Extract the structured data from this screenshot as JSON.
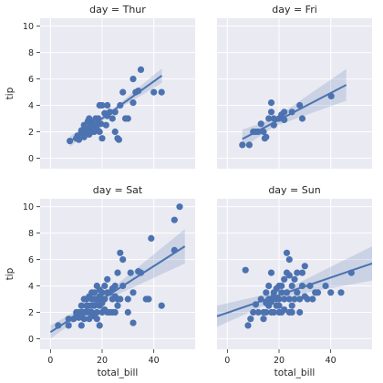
{
  "chart_data": {
    "type": "scatter",
    "layout": "facet-grid 2x2",
    "x_label": "total_bill",
    "y_label": "tip",
    "xlim": [
      -4,
      56
    ],
    "ylim": [
      -0.8,
      10.6
    ],
    "x_ticks": [
      0,
      20,
      40
    ],
    "y_ticks": [
      0,
      2,
      4,
      6,
      8,
      10
    ],
    "grid": true,
    "panels": [
      {
        "title": "day = Thur",
        "line": {
          "x": [
            7.5,
            43.1
          ],
          "y": [
            1.25,
            6.25
          ]
        },
        "band_halfwidth": {
          "x": [
            7.5,
            25,
            43.1
          ],
          "h": [
            0.4,
            0.15,
            0.55
          ]
        },
        "points": [
          [
            7.5,
            1.3
          ],
          [
            10,
            1.5
          ],
          [
            10.5,
            1.7
          ],
          [
            11,
            1.4
          ],
          [
            12,
            1.9
          ],
          [
            12.5,
            2.0
          ],
          [
            13,
            1.6
          ],
          [
            13,
            2.5
          ],
          [
            13.5,
            2.0
          ],
          [
            14,
            2.2
          ],
          [
            14.5,
            2.8
          ],
          [
            15,
            2.0
          ],
          [
            15,
            1.8
          ],
          [
            15.5,
            2.5
          ],
          [
            16,
            2.0
          ],
          [
            16,
            2.7
          ],
          [
            16.5,
            2.3
          ],
          [
            17,
            2.0
          ],
          [
            17.5,
            3.0
          ],
          [
            18,
            2.5
          ],
          [
            18,
            2.2
          ],
          [
            18.5,
            3.0
          ],
          [
            19,
            4.0
          ],
          [
            19.5,
            2.6
          ],
          [
            20,
            4.0
          ],
          [
            20,
            1.5
          ],
          [
            21,
            3.4
          ],
          [
            21.5,
            2.5
          ],
          [
            22,
            3.2
          ],
          [
            22,
            4.0
          ],
          [
            23,
            3.5
          ],
          [
            24,
            3.0
          ],
          [
            25,
            2.0
          ],
          [
            25,
            3.5
          ],
          [
            26,
            1.5
          ],
          [
            26.5,
            1.4
          ],
          [
            27,
            4.0
          ],
          [
            28,
            5.0
          ],
          [
            29,
            3.0
          ],
          [
            30,
            3.0
          ],
          [
            32,
            4.2
          ],
          [
            32,
            6.0
          ],
          [
            33,
            5.0
          ],
          [
            34,
            5.1
          ],
          [
            35,
            6.7
          ],
          [
            40,
            5.0
          ],
          [
            43,
            5.0
          ],
          [
            19,
            2.0
          ],
          [
            17,
            2.5
          ],
          [
            15,
            3.0
          ],
          [
            12,
            2.1
          ],
          [
            14,
            1.9
          ]
        ]
      },
      {
        "title": "day = Fri",
        "line": {
          "x": [
            5.8,
            46
          ],
          "y": [
            1.45,
            5.55
          ]
        },
        "band_halfwidth": {
          "x": [
            5.8,
            18,
            46
          ],
          "h": [
            0.7,
            0.3,
            1.2
          ]
        },
        "points": [
          [
            5.8,
            1.0
          ],
          [
            8.5,
            1.0
          ],
          [
            10,
            2.0
          ],
          [
            11,
            2.0
          ],
          [
            12,
            2.0
          ],
          [
            13,
            2.6
          ],
          [
            14,
            2.0
          ],
          [
            14.5,
            1.5
          ],
          [
            15,
            1.6
          ],
          [
            16,
            3.0
          ],
          [
            17,
            3.5
          ],
          [
            17,
            4.2
          ],
          [
            18,
            3.0
          ],
          [
            18,
            2.5
          ],
          [
            20,
            3.0
          ],
          [
            21,
            3.3
          ],
          [
            22,
            2.9
          ],
          [
            22,
            3.5
          ],
          [
            25,
            3.5
          ],
          [
            28,
            4.0
          ],
          [
            29,
            3.0
          ],
          [
            40.2,
            4.7
          ]
        ]
      },
      {
        "title": "day = Sat",
        "line": {
          "x": [
            0,
            52
          ],
          "y": [
            0.5,
            7.0
          ]
        },
        "band_halfwidth": {
          "x": [
            0,
            20,
            52
          ],
          "h": [
            0.5,
            0.2,
            1.3
          ]
        },
        "points": [
          [
            3,
            1.0
          ],
          [
            7,
            1.5
          ],
          [
            7,
            1.0
          ],
          [
            9,
            1.5
          ],
          [
            10,
            2.0
          ],
          [
            10,
            1.7
          ],
          [
            11,
            1.6
          ],
          [
            12,
            2.0
          ],
          [
            12,
            1.0
          ],
          [
            13,
            2.0
          ],
          [
            13,
            1.5
          ],
          [
            14,
            2.0
          ],
          [
            14,
            3.0
          ],
          [
            15,
            2.5
          ],
          [
            15,
            2.0
          ],
          [
            15,
            1.5
          ],
          [
            16,
            3.0
          ],
          [
            16,
            2.0
          ],
          [
            17,
            3.0
          ],
          [
            17,
            2.5
          ],
          [
            17,
            3.5
          ],
          [
            18,
            4.0
          ],
          [
            18,
            2.0
          ],
          [
            18,
            3.0
          ],
          [
            19,
            2.5
          ],
          [
            19,
            1.0
          ],
          [
            20,
            3.0
          ],
          [
            20,
            2.0
          ],
          [
            20,
            3.5
          ],
          [
            21,
            4.0
          ],
          [
            21,
            3.0
          ],
          [
            22,
            2.0
          ],
          [
            22,
            3.5
          ],
          [
            23,
            2.0
          ],
          [
            24,
            3.0
          ],
          [
            24,
            2.0
          ],
          [
            25,
            2.0
          ],
          [
            25,
            4.0
          ],
          [
            26,
            5.0
          ],
          [
            26,
            3.0
          ],
          [
            27,
            6.5
          ],
          [
            27,
            3.0
          ],
          [
            28,
            4.0
          ],
          [
            28,
            6.0
          ],
          [
            30,
            2.0
          ],
          [
            31,
            5.0
          ],
          [
            32,
            3.5
          ],
          [
            32,
            1.2
          ],
          [
            34,
            5.1
          ],
          [
            35,
            5.0
          ],
          [
            37,
            3.0
          ],
          [
            38,
            3.0
          ],
          [
            39,
            7.6
          ],
          [
            43,
            2.5
          ],
          [
            48,
            9.0
          ],
          [
            48,
            6.7
          ],
          [
            50,
            10.0
          ],
          [
            14,
            2.5
          ],
          [
            16,
            2.5
          ],
          [
            12,
            2.5
          ],
          [
            19,
            3.2
          ],
          [
            23,
            3.5
          ],
          [
            16,
            1.8
          ],
          [
            11,
            2.0
          ],
          [
            18,
            1.5
          ],
          [
            24,
            3.8
          ],
          [
            20,
            2.7
          ],
          [
            15,
            3.2
          ],
          [
            17,
            1.7
          ],
          [
            30,
            3.0
          ],
          [
            22,
            4.5
          ],
          [
            26,
            2.5
          ],
          [
            12,
            1.8
          ],
          [
            13,
            3.0
          ],
          [
            21,
            2.2
          ],
          [
            25,
            3.2
          ],
          [
            19,
            3.7
          ],
          [
            16,
            3.5
          ]
        ]
      },
      {
        "title": "day = Sun",
        "line": {
          "x": [
            -4,
            56
          ],
          "y": [
            1.7,
            5.7
          ]
        },
        "band_halfwidth": {
          "x": [
            -4,
            22,
            56
          ],
          "h": [
            0.8,
            0.25,
            1.3
          ]
        },
        "points": [
          [
            7,
            5.2
          ],
          [
            8,
            1.0
          ],
          [
            9,
            1.5
          ],
          [
            10,
            2.0
          ],
          [
            11,
            2.6
          ],
          [
            12,
            2.0
          ],
          [
            13,
            3.0
          ],
          [
            14,
            2.0
          ],
          [
            14,
            1.5
          ],
          [
            15,
            3.5
          ],
          [
            15,
            2.0
          ],
          [
            16,
            3.0
          ],
          [
            16,
            4.0
          ],
          [
            16,
            2.5
          ],
          [
            17,
            2.0
          ],
          [
            17,
            3.0
          ],
          [
            17,
            5.0
          ],
          [
            18,
            3.2
          ],
          [
            18,
            2.0
          ],
          [
            18,
            3.5
          ],
          [
            19,
            2.5
          ],
          [
            19,
            3.0
          ],
          [
            20,
            2.0
          ],
          [
            20,
            4.0
          ],
          [
            20,
            3.0
          ],
          [
            21,
            3.5
          ],
          [
            21,
            2.0
          ],
          [
            21,
            4.0
          ],
          [
            22,
            3.0
          ],
          [
            22,
            4.5
          ],
          [
            23,
            5.0
          ],
          [
            23,
            6.5
          ],
          [
            23,
            3.5
          ],
          [
            24,
            3.0
          ],
          [
            24,
            2.0
          ],
          [
            24,
            6.0
          ],
          [
            25,
            4.0
          ],
          [
            25,
            2.5
          ],
          [
            26,
            3.0
          ],
          [
            26,
            4.5
          ],
          [
            27,
            3.5
          ],
          [
            27,
            5.0
          ],
          [
            28,
            2.0
          ],
          [
            28,
            3.0
          ],
          [
            29,
            5.0
          ],
          [
            29,
            4.0
          ],
          [
            30,
            5.5
          ],
          [
            31,
            3.0
          ],
          [
            32,
            4.0
          ],
          [
            33,
            3.0
          ],
          [
            34,
            3.5
          ],
          [
            35,
            3.5
          ],
          [
            38,
            4.0
          ],
          [
            40,
            3.5
          ],
          [
            44,
            3.5
          ],
          [
            48,
            5.0
          ],
          [
            15,
            2.7
          ],
          [
            19,
            3.8
          ],
          [
            25,
            2.0
          ],
          [
            22,
            2.2
          ],
          [
            30,
            3.2
          ],
          [
            17,
            2.8
          ],
          [
            20,
            2.5
          ],
          [
            24,
            4.8
          ]
        ]
      }
    ]
  }
}
